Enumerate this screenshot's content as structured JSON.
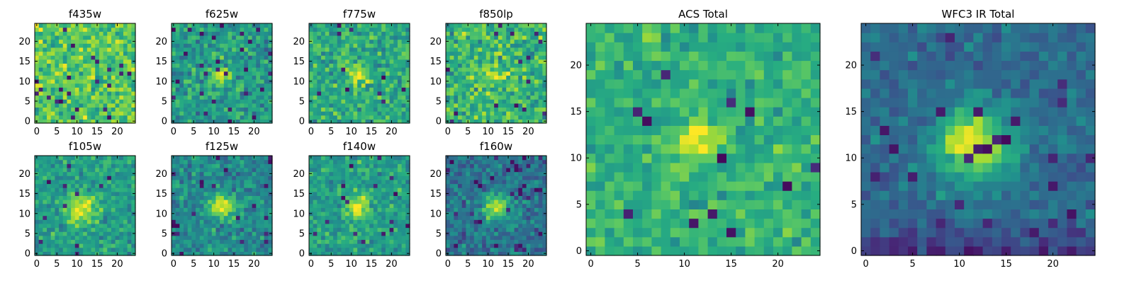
{
  "chart_data": [
    {
      "type": "heatmap",
      "title": "f435w",
      "xticks": [
        0,
        5,
        10,
        15,
        20
      ],
      "yticks": [
        0,
        5,
        10,
        15,
        20
      ],
      "xlim": [
        0,
        24
      ],
      "ylim": [
        0,
        24
      ],
      "grid": false,
      "colormap": "viridis",
      "source": {
        "kind": "noise",
        "seed": 11,
        "mean": 0.74,
        "amp": 0.0,
        "sigma": 2.0,
        "noise": 0.16,
        "lowspot": 0.03
      }
    },
    {
      "type": "heatmap",
      "title": "f625w",
      "xticks": [
        0,
        5,
        10,
        15,
        20
      ],
      "yticks": [
        0,
        5,
        10,
        15,
        20
      ],
      "xlim": [
        0,
        24
      ],
      "ylim": [
        0,
        24
      ],
      "grid": false,
      "colormap": "viridis",
      "source": {
        "kind": "blob",
        "seed": 12,
        "mean": 0.56,
        "amp": 0.36,
        "sigma": 1.6,
        "noise": 0.15,
        "lowspot": 0.03,
        "center": [
          11.5,
          11.5
        ]
      }
    },
    {
      "type": "heatmap",
      "title": "f775w",
      "xticks": [
        0,
        5,
        10,
        15,
        20
      ],
      "yticks": [
        0,
        5,
        10,
        15,
        20
      ],
      "xlim": [
        0,
        24
      ],
      "ylim": [
        0,
        24
      ],
      "grid": false,
      "colormap": "viridis",
      "source": {
        "kind": "blob",
        "seed": 13,
        "mean": 0.62,
        "amp": 0.32,
        "sigma": 1.7,
        "noise": 0.14,
        "lowspot": 0.02,
        "center": [
          12,
          11.5
        ]
      }
    },
    {
      "type": "heatmap",
      "title": "f850lp",
      "xticks": [
        0,
        5,
        10,
        15,
        20
      ],
      "yticks": [
        0,
        5,
        10,
        15,
        20
      ],
      "xlim": [
        0,
        24
      ],
      "ylim": [
        0,
        24
      ],
      "grid": false,
      "colormap": "viridis",
      "source": {
        "kind": "blob",
        "seed": 14,
        "mean": 0.66,
        "amp": 0.18,
        "sigma": 1.6,
        "noise": 0.17,
        "lowspot": 0.03,
        "center": [
          11.5,
          11.5
        ]
      }
    },
    {
      "type": "heatmap",
      "title": "f105w",
      "xticks": [
        0,
        5,
        10,
        15,
        20
      ],
      "yticks": [
        0,
        5,
        10,
        15,
        20
      ],
      "xlim": [
        0,
        24
      ],
      "ylim": [
        0,
        24
      ],
      "grid": false,
      "colormap": "viridis",
      "source": {
        "kind": "blob",
        "seed": 15,
        "mean": 0.56,
        "amp": 0.42,
        "sigma": 2.5,
        "noise": 0.13,
        "lowspot": 0.02,
        "center": [
          11,
          11
        ]
      }
    },
    {
      "type": "heatmap",
      "title": "f125w",
      "xticks": [
        0,
        5,
        10,
        15,
        20
      ],
      "yticks": [
        0,
        5,
        10,
        15,
        20
      ],
      "xlim": [
        0,
        24
      ],
      "ylim": [
        0,
        24
      ],
      "grid": false,
      "colormap": "viridis",
      "source": {
        "kind": "blob",
        "seed": 16,
        "mean": 0.48,
        "amp": 0.5,
        "sigma": 2.2,
        "noise": 0.13,
        "lowspot": 0.03,
        "center": [
          12,
          12
        ]
      }
    },
    {
      "type": "heatmap",
      "title": "f140w",
      "xticks": [
        0,
        5,
        10,
        15,
        20
      ],
      "yticks": [
        0,
        5,
        10,
        15,
        20
      ],
      "xlim": [
        0,
        24
      ],
      "ylim": [
        0,
        24
      ],
      "grid": false,
      "colormap": "viridis",
      "source": {
        "kind": "blob",
        "seed": 17,
        "mean": 0.56,
        "amp": 0.4,
        "sigma": 2.2,
        "noise": 0.13,
        "lowspot": 0.03,
        "center": [
          11.5,
          11.5
        ]
      }
    },
    {
      "type": "heatmap",
      "title": "f160w",
      "xticks": [
        0,
        5,
        10,
        15,
        20
      ],
      "yticks": [
        0,
        5,
        10,
        15,
        20
      ],
      "xlim": [
        0,
        24
      ],
      "ylim": [
        0,
        24
      ],
      "grid": false,
      "colormap": "viridis",
      "source": {
        "kind": "blob",
        "seed": 18,
        "mean": 0.38,
        "amp": 0.58,
        "sigma": 2.2,
        "noise": 0.13,
        "lowspot": 0.05,
        "center": [
          12,
          11.5
        ]
      }
    },
    {
      "type": "heatmap",
      "title": "ACS Total",
      "xticks": [
        0,
        5,
        10,
        15,
        20
      ],
      "yticks": [
        0,
        5,
        10,
        15,
        20
      ],
      "xlim": [
        0,
        24
      ],
      "ylim": [
        0,
        24
      ],
      "grid": false,
      "colormap": "viridis",
      "source": {
        "kind": "blob",
        "seed": 19,
        "mean": 0.64,
        "amp": 0.34,
        "sigma": 1.7,
        "noise": 0.12,
        "lowspot": 0.02,
        "center": [
          11.5,
          11.5
        ]
      }
    },
    {
      "type": "heatmap",
      "title": "WFC3 IR Total",
      "xticks": [
        0,
        5,
        10,
        15,
        20
      ],
      "yticks": [
        0,
        5,
        10,
        15,
        20
      ],
      "xlim": [
        0,
        24
      ],
      "ylim": [
        0,
        24
      ],
      "grid": false,
      "colormap": "viridis",
      "source": {
        "kind": "blob",
        "seed": 20,
        "mean": 0.36,
        "amp": 0.62,
        "sigma": 2.7,
        "noise": 0.09,
        "lowspot": 0.04,
        "center": [
          11.5,
          11.5
        ],
        "bottom_dark": true
      }
    }
  ]
}
